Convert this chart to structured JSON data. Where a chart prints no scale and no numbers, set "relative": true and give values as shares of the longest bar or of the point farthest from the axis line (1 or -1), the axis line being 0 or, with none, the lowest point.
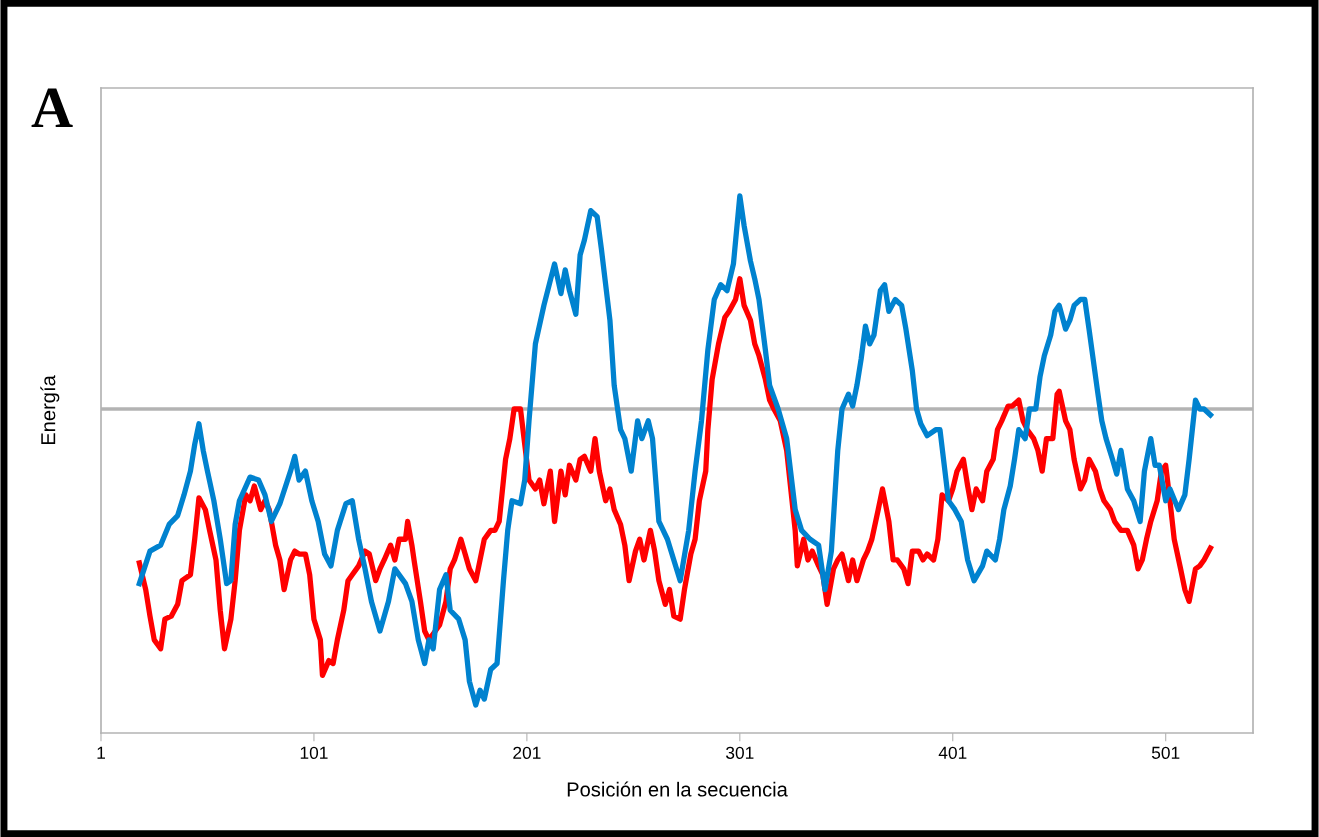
{
  "chart_data": {
    "type": "line",
    "xlabel": "Posición en la secuencia",
    "ylabel": "Energía",
    "annotations": [
      "A"
    ],
    "relative": true,
    "xlim": [
      1,
      542
    ],
    "xticks": [
      1,
      101,
      201,
      301,
      401,
      501
    ],
    "grid": false,
    "marker": "none",
    "line_style": "solid",
    "series": [
      {
        "color": "#ff0000",
        "x": [
          19,
          22,
          24,
          26,
          29,
          31,
          34,
          37,
          39,
          43,
          45,
          47,
          50,
          52,
          55,
          57,
          59,
          62,
          64,
          66,
          69,
          71,
          73,
          76,
          78,
          80,
          83,
          85,
          87,
          90,
          92,
          94,
          97,
          99,
          101,
          104,
          105,
          108,
          110,
          112,
          115,
          117,
          119,
          122,
          125,
          127,
          130,
          132,
          134,
          137,
          139,
          141,
          144,
          145,
          147,
          148,
          151,
          153,
          155,
          158,
          160,
          163,
          165,
          167,
          170,
          172,
          174,
          177,
          179,
          181,
          184,
          186,
          188,
          191,
          193,
          195,
          198,
          200,
          202,
          205,
          207,
          209,
          212,
          214,
          217,
          219,
          221,
          224,
          226,
          228,
          231,
          233,
          235,
          238,
          240,
          242,
          245,
          247,
          249,
          252,
          254,
          256,
          259,
          261,
          263,
          266,
          268,
          270,
          273,
          275,
          278,
          280,
          282,
          285,
          286,
          288,
          291,
          294,
          296,
          299,
          301,
          303,
          306,
          308,
          310,
          313,
          315,
          317,
          320,
          323,
          327,
          328,
          331,
          333,
          335,
          338,
          340,
          342,
          345,
          347,
          349,
          352,
          354,
          356,
          359,
          361,
          363,
          366,
          368,
          371,
          373,
          375,
          378,
          380,
          382,
          385,
          387,
          389,
          392,
          394,
          396,
          399,
          401,
          403,
          406,
          408,
          410,
          412,
          415,
          417,
          420,
          422,
          424,
          427,
          429,
          432,
          434,
          436,
          439,
          441,
          443,
          445,
          448,
          450,
          451,
          454,
          456,
          458,
          461,
          463,
          465,
          468,
          470,
          472,
          475,
          477,
          480,
          483,
          486,
          488,
          490,
          492,
          494,
          497,
          499,
          501,
          503,
          505,
          508,
          510,
          512,
          515,
          517,
          519,
          522
        ],
        "values": [
          -0.52,
          -0.61,
          -0.7,
          -0.78,
          -0.81,
          -0.71,
          -0.7,
          -0.66,
          -0.58,
          -0.56,
          -0.44,
          -0.3,
          -0.34,
          -0.41,
          -0.51,
          -0.68,
          -0.81,
          -0.71,
          -0.58,
          -0.41,
          -0.29,
          -0.31,
          -0.26,
          -0.34,
          -0.31,
          -0.34,
          -0.46,
          -0.51,
          -0.61,
          -0.51,
          -0.48,
          -0.49,
          -0.49,
          -0.56,
          -0.71,
          -0.78,
          -0.9,
          -0.85,
          -0.86,
          -0.78,
          -0.68,
          -0.58,
          -0.56,
          -0.53,
          -0.48,
          -0.49,
          -0.58,
          -0.54,
          -0.51,
          -0.46,
          -0.51,
          -0.44,
          -0.44,
          -0.38,
          -0.46,
          -0.51,
          -0.65,
          -0.75,
          -0.78,
          -0.75,
          -0.73,
          -0.65,
          -0.54,
          -0.51,
          -0.44,
          -0.49,
          -0.54,
          -0.58,
          -0.51,
          -0.44,
          -0.41,
          -0.41,
          -0.38,
          -0.17,
          -0.1,
          0.0,
          0.0,
          -0.12,
          -0.24,
          -0.27,
          -0.24,
          -0.32,
          -0.21,
          -0.38,
          -0.21,
          -0.29,
          -0.19,
          -0.24,
          -0.17,
          -0.16,
          -0.21,
          -0.1,
          -0.21,
          -0.31,
          -0.27,
          -0.34,
          -0.39,
          -0.46,
          -0.58,
          -0.48,
          -0.44,
          -0.51,
          -0.41,
          -0.48,
          -0.58,
          -0.66,
          -0.61,
          -0.7,
          -0.71,
          -0.61,
          -0.49,
          -0.44,
          -0.31,
          -0.21,
          -0.07,
          0.1,
          0.22,
          0.31,
          0.33,
          0.37,
          0.44,
          0.35,
          0.3,
          0.22,
          0.18,
          0.1,
          0.03,
          0.0,
          -0.04,
          -0.14,
          -0.41,
          -0.53,
          -0.44,
          -0.51,
          -0.48,
          -0.53,
          -0.56,
          -0.66,
          -0.54,
          -0.51,
          -0.49,
          -0.58,
          -0.51,
          -0.58,
          -0.51,
          -0.48,
          -0.44,
          -0.34,
          -0.27,
          -0.38,
          -0.51,
          -0.51,
          -0.54,
          -0.59,
          -0.48,
          -0.48,
          -0.51,
          -0.49,
          -0.51,
          -0.44,
          -0.29,
          -0.31,
          -0.27,
          -0.21,
          -0.17,
          -0.26,
          -0.34,
          -0.27,
          -0.31,
          -0.21,
          -0.17,
          -0.07,
          -0.04,
          0.01,
          0.01,
          0.03,
          -0.04,
          -0.07,
          -0.1,
          -0.14,
          -0.21,
          -0.1,
          -0.1,
          0.05,
          0.06,
          -0.04,
          -0.07,
          -0.17,
          -0.27,
          -0.24,
          -0.17,
          -0.21,
          -0.27,
          -0.31,
          -0.34,
          -0.38,
          -0.41,
          -0.41,
          -0.46,
          -0.54,
          -0.51,
          -0.44,
          -0.38,
          -0.31,
          -0.21,
          -0.19,
          -0.31,
          -0.44,
          -0.54,
          -0.61,
          -0.65,
          -0.54,
          -0.53,
          -0.51,
          -0.47
        ]
      },
      {
        "color": "#0082cf",
        "x": [
          19,
          24,
          29,
          33,
          37,
          40,
          43,
          45,
          47,
          49,
          51,
          54,
          57,
          60,
          62,
          64,
          66,
          71,
          75,
          78,
          81,
          85,
          90,
          92,
          94,
          97,
          100,
          103,
          106,
          109,
          112,
          116,
          119,
          122,
          125,
          128,
          132,
          136,
          139,
          144,
          147,
          150,
          153,
          155,
          157,
          160,
          163,
          165,
          169,
          172,
          174,
          177,
          179,
          181,
          184,
          187,
          190,
          192,
          194,
          198,
          200,
          202,
          205,
          209,
          214,
          217,
          219,
          221,
          224,
          226,
          228,
          231,
          234,
          236,
          240,
          242,
          245,
          247,
          250,
          253,
          255,
          258,
          260,
          263,
          267,
          270,
          273,
          277,
          280,
          283,
          286,
          289,
          292,
          295,
          298,
          301,
          303,
          306,
          308,
          310,
          313,
          315,
          319,
          323,
          327,
          330,
          334,
          338,
          341,
          344,
          347,
          349,
          352,
          354,
          356,
          358,
          360,
          362,
          364,
          367,
          369,
          371,
          374,
          377,
          379,
          382,
          384,
          386,
          389,
          393,
          395,
          399,
          402,
          405,
          408,
          411,
          415,
          417,
          421,
          423,
          425,
          428,
          430,
          432,
          435,
          437,
          440,
          442,
          444,
          447,
          449,
          451,
          454,
          456,
          458,
          461,
          463,
          465,
          469,
          471,
          473,
          476,
          478,
          480,
          483,
          486,
          489,
          491,
          494,
          496,
          498,
          501,
          503,
          507,
          510,
          512,
          515,
          517,
          519,
          522
        ],
        "values": [
          -0.59,
          -0.48,
          -0.46,
          -0.39,
          -0.36,
          -0.29,
          -0.21,
          -0.12,
          -0.05,
          -0.14,
          -0.21,
          -0.31,
          -0.44,
          -0.59,
          -0.58,
          -0.39,
          -0.31,
          -0.23,
          -0.24,
          -0.29,
          -0.38,
          -0.32,
          -0.21,
          -0.16,
          -0.24,
          -0.21,
          -0.31,
          -0.38,
          -0.49,
          -0.53,
          -0.41,
          -0.32,
          -0.31,
          -0.44,
          -0.54,
          -0.65,
          -0.75,
          -0.65,
          -0.54,
          -0.59,
          -0.65,
          -0.78,
          -0.86,
          -0.78,
          -0.81,
          -0.61,
          -0.56,
          -0.68,
          -0.71,
          -0.78,
          -0.92,
          -1,
          -0.95,
          -0.98,
          -0.88,
          -0.86,
          -0.58,
          -0.41,
          -0.31,
          -0.32,
          -0.24,
          -0.04,
          0.22,
          0.35,
          0.49,
          0.39,
          0.47,
          0.4,
          0.32,
          0.52,
          0.57,
          0.67,
          0.65,
          0.54,
          0.3,
          0.08,
          -0.07,
          -0.1,
          -0.21,
          -0.04,
          -0.1,
          -0.04,
          -0.1,
          -0.38,
          -0.44,
          -0.51,
          -0.58,
          -0.41,
          -0.21,
          -0.04,
          0.2,
          0.37,
          0.42,
          0.4,
          0.49,
          0.72,
          0.62,
          0.5,
          0.44,
          0.37,
          0.2,
          0.08,
          0.0,
          -0.1,
          -0.34,
          -0.41,
          -0.44,
          -0.46,
          -0.61,
          -0.48,
          -0.14,
          0.0,
          0.05,
          0.01,
          0.08,
          0.17,
          0.28,
          0.22,
          0.25,
          0.4,
          0.42,
          0.33,
          0.37,
          0.35,
          0.27,
          0.13,
          0.0,
          -0.05,
          -0.09,
          -0.07,
          -0.07,
          -0.31,
          -0.34,
          -0.38,
          -0.51,
          -0.58,
          -0.53,
          -0.48,
          -0.51,
          -0.44,
          -0.34,
          -0.26,
          -0.17,
          -0.07,
          -0.1,
          0.0,
          0.0,
          0.11,
          0.18,
          0.25,
          0.33,
          0.35,
          0.27,
          0.3,
          0.35,
          0.37,
          0.37,
          0.27,
          0.06,
          -0.04,
          -0.1,
          -0.17,
          -0.22,
          -0.14,
          -0.27,
          -0.31,
          -0.38,
          -0.21,
          -0.1,
          -0.19,
          -0.19,
          -0.31,
          -0.27,
          -0.34,
          -0.29,
          -0.17,
          0.03,
          0.0,
          0.0,
          -0.02
        ]
      }
    ]
  }
}
